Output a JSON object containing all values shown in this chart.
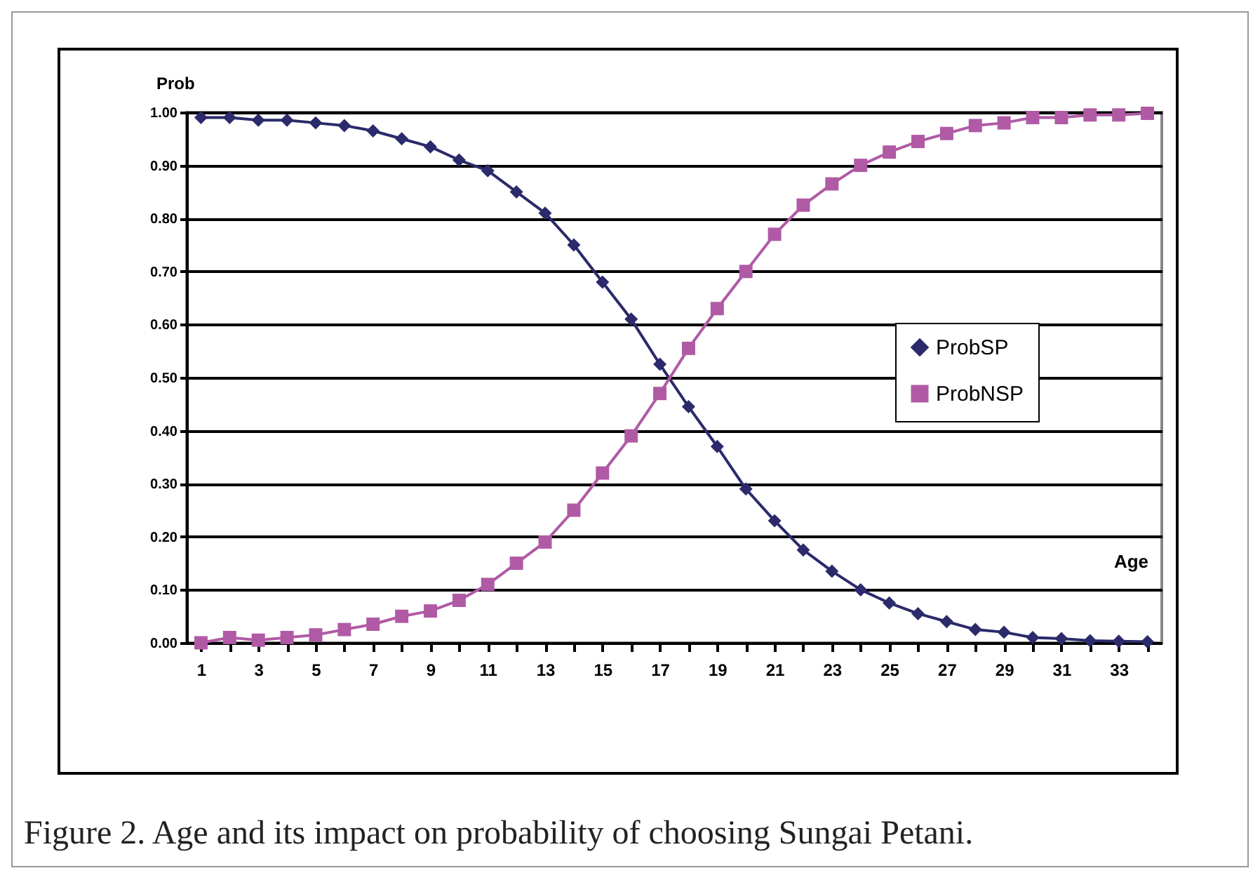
{
  "chart_data": {
    "type": "line",
    "xlabel": "Age",
    "ylabel": "Prob",
    "x": [
      1,
      2,
      3,
      4,
      5,
      6,
      7,
      8,
      9,
      10,
      11,
      12,
      13,
      14,
      15,
      16,
      17,
      18,
      19,
      20,
      21,
      22,
      23,
      24,
      25,
      26,
      27,
      28,
      29,
      30,
      31,
      32,
      33,
      34
    ],
    "series": [
      {
        "name": "ProbSP",
        "color": "#2b2a6b",
        "marker": "diamond",
        "values": [
          0.99,
          0.99,
          0.985,
          0.985,
          0.98,
          0.975,
          0.965,
          0.95,
          0.935,
          0.91,
          0.89,
          0.85,
          0.81,
          0.75,
          0.68,
          0.61,
          0.525,
          0.445,
          0.37,
          0.29,
          0.23,
          0.175,
          0.135,
          0.1,
          0.075,
          0.055,
          0.04,
          0.025,
          0.02,
          0.01,
          0.008,
          0.004,
          0.003,
          0.002
        ]
      },
      {
        "name": "ProbNSP",
        "color": "#b05aa6",
        "marker": "square",
        "values": [
          0.0,
          0.01,
          0.005,
          0.01,
          0.015,
          0.025,
          0.035,
          0.05,
          0.06,
          0.08,
          0.11,
          0.15,
          0.19,
          0.25,
          0.32,
          0.39,
          0.47,
          0.555,
          0.63,
          0.7,
          0.77,
          0.825,
          0.865,
          0.9,
          0.925,
          0.945,
          0.96,
          0.975,
          0.98,
          0.99,
          0.99,
          0.995,
          0.995,
          0.998
        ]
      }
    ],
    "xlim": [
      0.5,
      34.5
    ],
    "xticks": [
      1,
      {
        "value": 2,
        "label": null
      },
      3,
      {
        "value": 4,
        "label": null
      },
      5,
      {
        "value": 6,
        "label": null
      },
      7,
      {
        "value": 8,
        "label": null
      },
      9,
      {
        "value": 10,
        "label": null
      },
      11,
      {
        "value": 12,
        "label": null
      },
      13,
      {
        "value": 14,
        "label": null
      },
      15,
      {
        "value": 16,
        "label": null
      },
      17,
      {
        "value": 18,
        "label": null
      },
      19,
      {
        "value": 20,
        "label": null
      },
      21,
      {
        "value": 22,
        "label": null
      },
      23,
      {
        "value": 24,
        "label": null
      },
      25,
      {
        "value": 26,
        "label": null
      },
      27,
      {
        "value": 28,
        "label": null
      },
      29,
      {
        "value": 30,
        "label": null
      },
      31,
      {
        "value": 32,
        "label": null
      },
      33,
      {
        "value": 34,
        "label": null
      }
    ],
    "ylim": [
      0,
      1
    ],
    "yticks": [
      {
        "value": 0,
        "label": "0.00"
      },
      {
        "value": 0.1,
        "label": "0.10"
      },
      {
        "value": 0.2,
        "label": "0.20"
      },
      {
        "value": 0.3,
        "label": "0.30"
      },
      {
        "value": 0.4,
        "label": "0.40"
      },
      {
        "value": 0.5,
        "label": "0.50"
      },
      {
        "value": 0.6,
        "label": "0.60"
      },
      {
        "value": 0.7,
        "label": "0.70"
      },
      {
        "value": 0.8,
        "label": "0.80"
      },
      {
        "value": 0.9,
        "label": "0.90"
      },
      {
        "value": 1,
        "label": "1.00"
      }
    ],
    "grid": "y",
    "legend": "right",
    "line_style": "solid",
    "annotations": [
      "Figure 2. Age and its impact on probability of choosing Sungai Petani."
    ]
  }
}
